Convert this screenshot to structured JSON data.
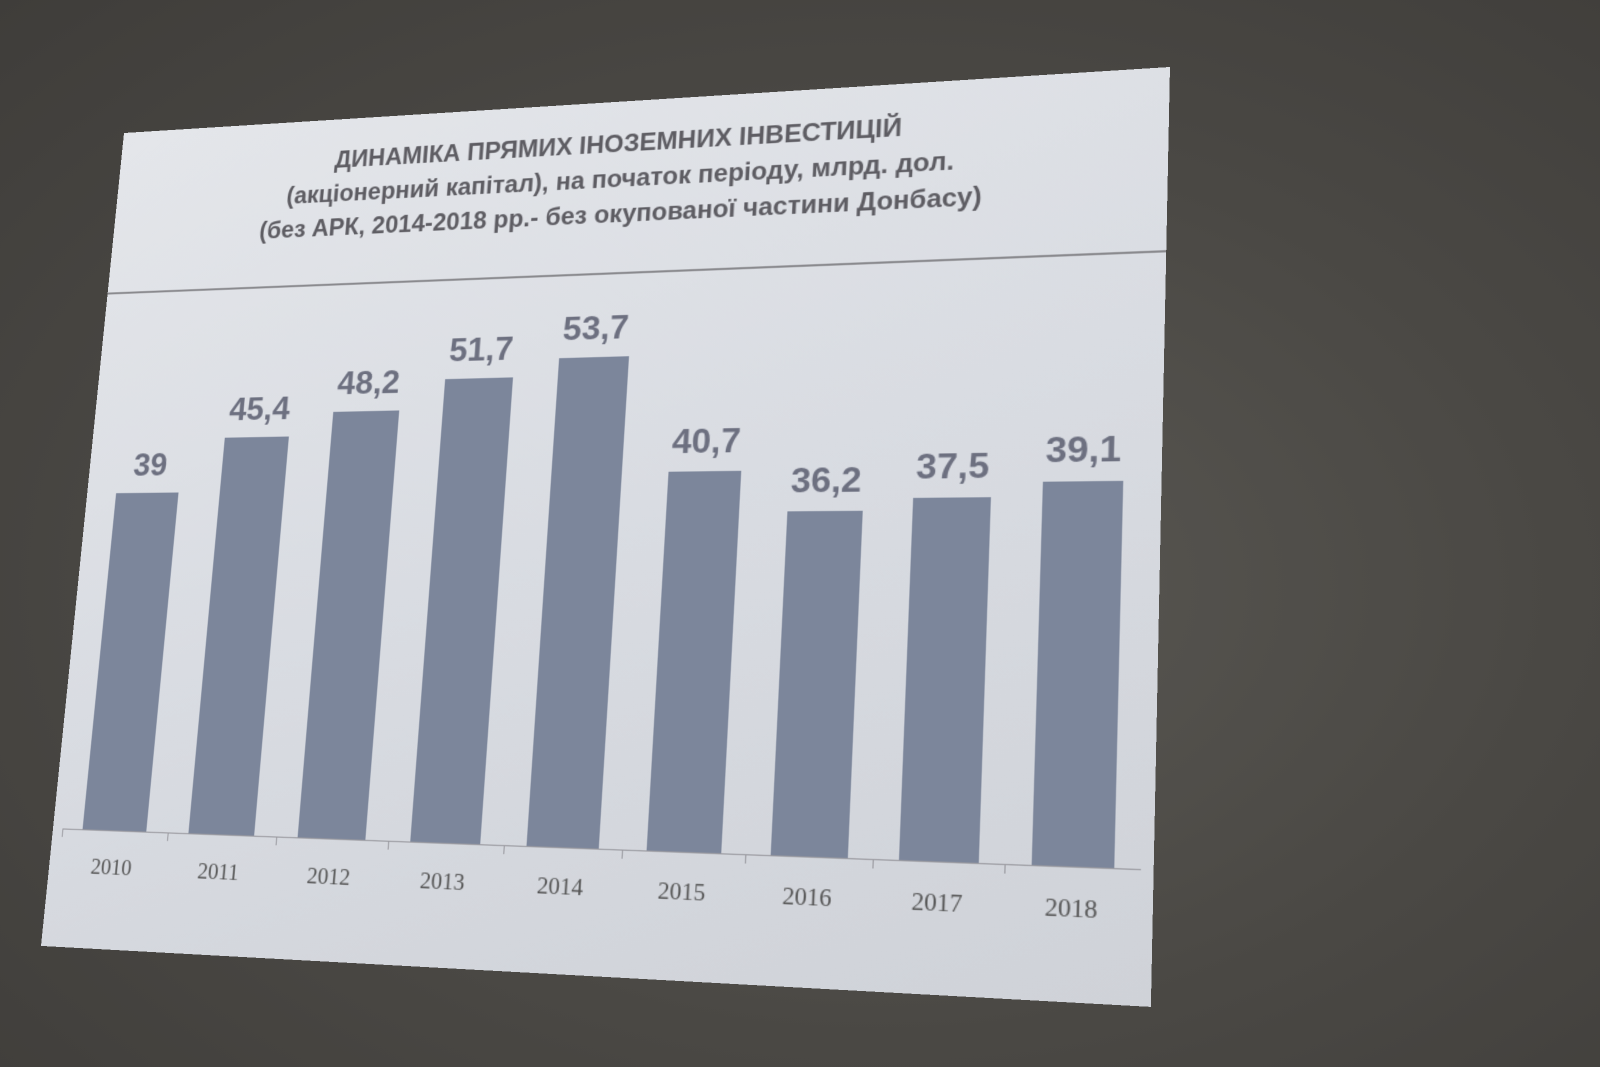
{
  "chart_data": {
    "type": "bar",
    "title": "ДИНАМІКА ПРЯМИХ ІНОЗЕМНИХ ІНВЕСТИЦІЙ",
    "subtitle": [
      "(акціонерний капітал), на початок періоду, млрд. дол.",
      "(без АРК, 2014-2018 рр.- без окупованої частини Донбасу)"
    ],
    "categories": [
      "2010",
      "2011",
      "2012",
      "2013",
      "2014",
      "2015",
      "2016",
      "2017",
      "2018"
    ],
    "values": [
      39,
      45.4,
      48.2,
      51.7,
      53.7,
      40.7,
      36.2,
      37.5,
      39.1
    ],
    "value_labels": [
      "39",
      "45,4",
      "48,2",
      "51,7",
      "53,7",
      "40,7",
      "36,2",
      "37,5",
      "39,1"
    ],
    "xlabel": "",
    "ylabel": "",
    "ylim": [
      0,
      60
    ],
    "grid": false,
    "colors": {
      "bar": "#7c869b",
      "background": "#dcdfe4"
    }
  }
}
